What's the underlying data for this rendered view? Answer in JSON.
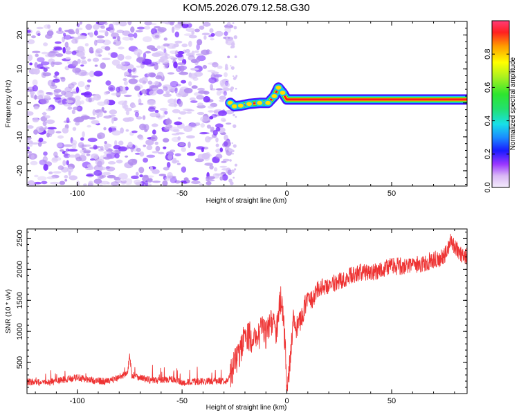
{
  "title": "KOM5.2026.079.12.58.G30",
  "colors": {
    "snr_line": "#ee3333",
    "ridge_core": "#ff1a1a",
    "noise_light": "#d9c6f7",
    "noise_mid": "#b48ef0",
    "noise_dark": "#7a2cff"
  },
  "chart_data": [
    {
      "type": "heatmap",
      "name": "spectrogram",
      "title": "KOM5.2026.079.12.58.G30",
      "xlabel": "Height of straight line (km)",
      "ylabel": "Frequency (Hz)",
      "xlim": [
        -124,
        86
      ],
      "ylim": [
        -24.5,
        24
      ],
      "xticks": [
        -100,
        -50,
        0,
        50
      ],
      "xtick_labels": [
        "-100",
        "-50",
        "0",
        "50"
      ],
      "yticks": [
        -20,
        -10,
        0,
        10,
        20
      ],
      "ytick_labels": [
        "-20",
        "-10",
        "0",
        "10",
        "20"
      ],
      "noise_region_x": [
        -124,
        -27
      ],
      "ridge_path": [
        {
          "x": -27,
          "y": 0
        },
        {
          "x": -25,
          "y": -1
        },
        {
          "x": -22,
          "y": -0.8
        },
        {
          "x": -18,
          "y": -0.3
        },
        {
          "x": -13,
          "y": 0
        },
        {
          "x": -9,
          "y": 0
        },
        {
          "x": -6,
          "y": 2
        },
        {
          "x": -4,
          "y": 4.5
        },
        {
          "x": -2,
          "y": 3
        },
        {
          "x": 0,
          "y": 1
        },
        {
          "x": 20,
          "y": 1
        },
        {
          "x": 86,
          "y": 1
        }
      ],
      "colorbar": {
        "label": "Normalized spectral amplitude",
        "range": [
          0,
          1
        ],
        "ticks": [
          0,
          0.2,
          0.4,
          0.6,
          0.8
        ],
        "tick_labels": [
          "0.0",
          "0.2",
          "0.4",
          "0.6",
          "0.8"
        ]
      }
    },
    {
      "type": "line",
      "name": "snr",
      "xlabel": "Height of straight line (km)",
      "ylabel": "SNR (10 * v/v)",
      "xlim": [
        -124,
        86
      ],
      "ylim": [
        0,
        2650
      ],
      "xticks": [
        -100,
        -50,
        0,
        50
      ],
      "xtick_labels": [
        "-100",
        "-50",
        "0",
        "50"
      ],
      "yticks": [
        500,
        1000,
        1500,
        2000,
        2500
      ],
      "ytick_labels": [
        "500",
        "1000",
        "1500",
        "2000",
        "2500"
      ],
      "series": [
        {
          "name": "SNR",
          "x": [
            -124,
            -115,
            -105,
            -100,
            -95,
            -85,
            -76,
            -75,
            -74,
            -65,
            -55,
            -50,
            -45,
            -35,
            -28,
            -25,
            -22,
            -20,
            -17,
            -15,
            -12,
            -10,
            -8,
            -5,
            -3,
            -2,
            -1,
            0,
            1,
            3,
            5,
            8,
            10,
            12,
            15,
            20,
            25,
            30,
            35,
            40,
            45,
            50,
            55,
            60,
            65,
            70,
            75,
            78,
            80,
            83,
            86
          ],
          "y": [
            190,
            170,
            230,
            260,
            220,
            190,
            330,
            620,
            300,
            210,
            230,
            170,
            190,
            200,
            210,
            500,
            700,
            980,
            900,
            800,
            1050,
            950,
            1200,
            1000,
            1500,
            1300,
            900,
            200,
            300,
            1200,
            1050,
            1350,
            1550,
            1500,
            1700,
            1750,
            1800,
            1900,
            1950,
            1950,
            2000,
            2050,
            2050,
            2050,
            2100,
            2150,
            2200,
            2450,
            2350,
            2250,
            2200
          ]
        }
      ]
    }
  ]
}
